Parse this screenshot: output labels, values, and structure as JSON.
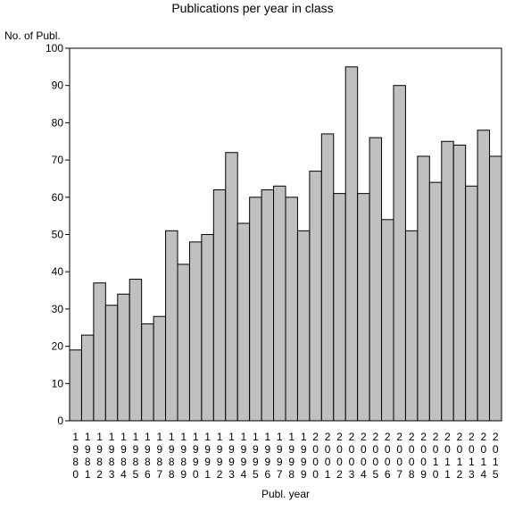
{
  "chart_data": {
    "type": "bar",
    "title": "Publications per year in class",
    "ylabel": "No. of Publ.",
    "xlabel": "Publ. year",
    "ylim": [
      0,
      100
    ],
    "yticks": [
      0,
      10,
      20,
      30,
      40,
      50,
      60,
      70,
      80,
      90,
      100
    ],
    "grid": false,
    "bar_color": "#c0c0c0",
    "categories": [
      "1980",
      "1981",
      "1982",
      "1983",
      "1984",
      "1985",
      "1986",
      "1987",
      "1988",
      "1989",
      "1990",
      "1991",
      "1992",
      "1993",
      "1994",
      "1995",
      "1996",
      "1997",
      "1998",
      "1999",
      "2000",
      "2001",
      "2002",
      "2003",
      "2004",
      "2005",
      "2006",
      "2007",
      "2008",
      "2009",
      "2010",
      "2011",
      "2012",
      "2013",
      "2014",
      "2015"
    ],
    "values": [
      19,
      23,
      37,
      31,
      34,
      38,
      26,
      28,
      51,
      42,
      48,
      50,
      62,
      72,
      53,
      60,
      62,
      63,
      60,
      51,
      67,
      77,
      61,
      95,
      61,
      76,
      54,
      90,
      51,
      71,
      64,
      75,
      74,
      63,
      78,
      71
    ]
  }
}
